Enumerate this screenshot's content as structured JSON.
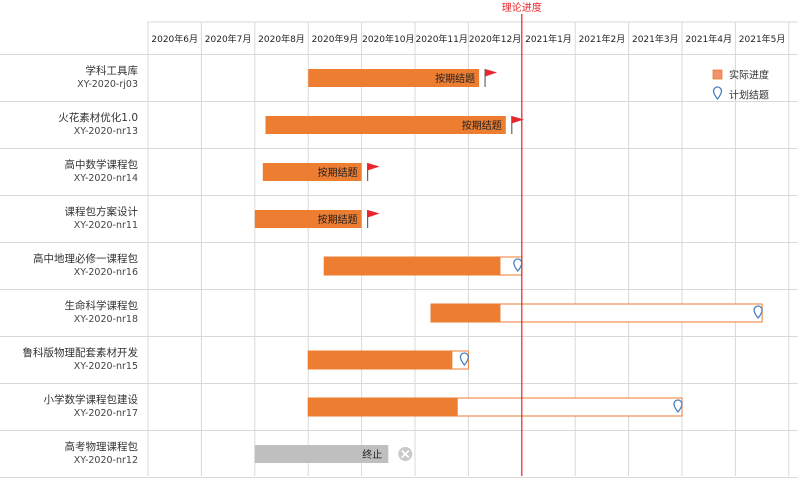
{
  "chart_data": {
    "type": "gantt",
    "months": [
      "2020年6月",
      "2020年7月",
      "2020年8月",
      "2020年9月",
      "2020年10月",
      "2020年11月",
      "2020年12月",
      "2021年1月",
      "2021年2月",
      "2021年3月",
      "2021年4月",
      "2021年5月"
    ],
    "today_label": "理论进度",
    "today_month_offset": 7.0,
    "legend": {
      "actual": "实际进度",
      "planned": "计划结题"
    },
    "colors": {
      "actual": "#ed7d31",
      "planned_border": "#ed7d31",
      "terminated": "#bfbfbf",
      "today_line": "#e8262d",
      "grid": "#d9d9d9"
    },
    "projects": [
      {
        "name": "学科工具库",
        "code": "XY-2020-rj03",
        "start": 3.0,
        "actual_end": 6.2,
        "plan_end": 6.2,
        "status": "completed",
        "label": "按期结题"
      },
      {
        "name": "火花素材优化1.0",
        "code": "XY-2020-nr13",
        "start": 2.2,
        "actual_end": 6.7,
        "plan_end": 6.7,
        "status": "completed",
        "label": "按期结题"
      },
      {
        "name": "高中数学课程包",
        "code": "XY-2020-nr14",
        "start": 2.15,
        "actual_end": 4.0,
        "plan_end": 4.0,
        "status": "completed",
        "label": "按期结题"
      },
      {
        "name": "课程包方案设计",
        "code": "XY-2020-nr11",
        "start": 2.0,
        "actual_end": 4.0,
        "plan_end": 4.0,
        "status": "completed",
        "label": "按期结题"
      },
      {
        "name": "高中地理必修一课程包",
        "code": "XY-2020-nr16",
        "start": 3.3,
        "actual_end": 6.6,
        "plan_end": 7.0,
        "status": "in_progress",
        "label": ""
      },
      {
        "name": "生命科学课程包",
        "code": "XY-2020-nr18",
        "start": 5.3,
        "actual_end": 6.6,
        "plan_end": 11.5,
        "status": "in_progress",
        "label": ""
      },
      {
        "name": "鲁科版物理配套素材开发",
        "code": "XY-2020-nr15",
        "start": 3.0,
        "actual_end": 5.7,
        "plan_end": 6.0,
        "status": "in_progress",
        "label": ""
      },
      {
        "name": "小学数学课程包建设",
        "code": "XY-2020-nr17",
        "start": 3.0,
        "actual_end": 5.8,
        "plan_end": 10.0,
        "status": "in_progress",
        "label": ""
      },
      {
        "name": "高考物理课程包",
        "code": "XY-2020-nr12",
        "start": 2.0,
        "actual_end": 4.5,
        "plan_end": 4.5,
        "status": "terminated",
        "label": "终止"
      }
    ]
  }
}
